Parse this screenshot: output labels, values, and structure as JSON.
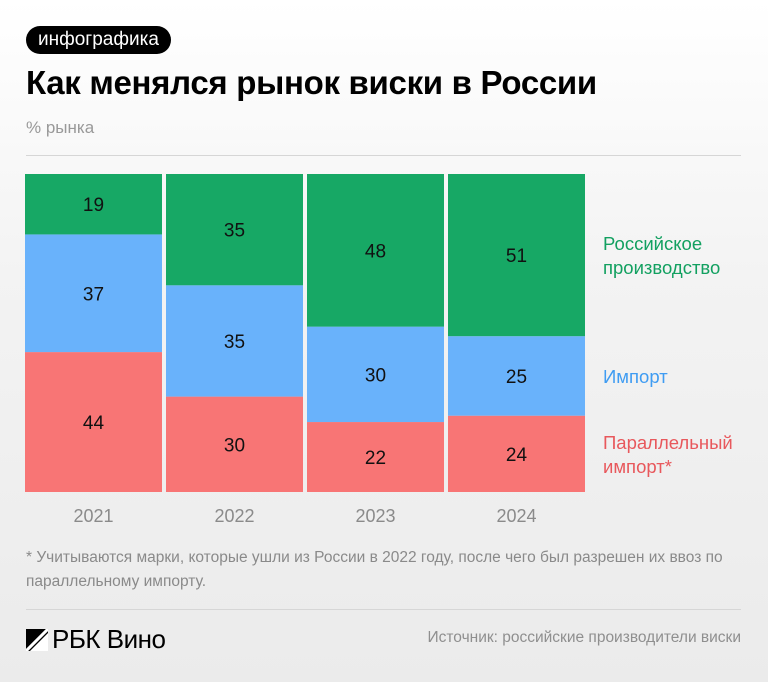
{
  "badge": "инфографика",
  "title": "Как менялся рынок виски в России",
  "subtitle": "% рынка",
  "chart_data": {
    "type": "bar",
    "stacked": true,
    "categories": [
      "2021",
      "2022",
      "2023",
      "2024"
    ],
    "ylim": [
      0,
      100
    ],
    "series": [
      {
        "name": "Параллельный импорт*",
        "color": "#f87575",
        "values": [
          44,
          30,
          22,
          24
        ]
      },
      {
        "name": "Импорт",
        "color": "#69b2fb",
        "values": [
          37,
          35,
          30,
          25
        ]
      },
      {
        "name": "Российское производство",
        "color": "#17a865",
        "values": [
          19,
          35,
          48,
          51
        ]
      }
    ],
    "legend_lines": [
      [
        "Параллельный",
        "импорт*"
      ],
      [
        "Импорт"
      ],
      [
        "Российское",
        "производство"
      ]
    ],
    "legend_colors": [
      "#e8585c",
      "#3f9cf2",
      "#12a060"
    ],
    "legend": "right"
  },
  "note": "* Учитываются марки, которые ушли из России в 2022 году, после чего был разрешен их ввоз по параллельному импорту.",
  "logo": "РБК Вино",
  "source": "Источник: российские производители виски"
}
